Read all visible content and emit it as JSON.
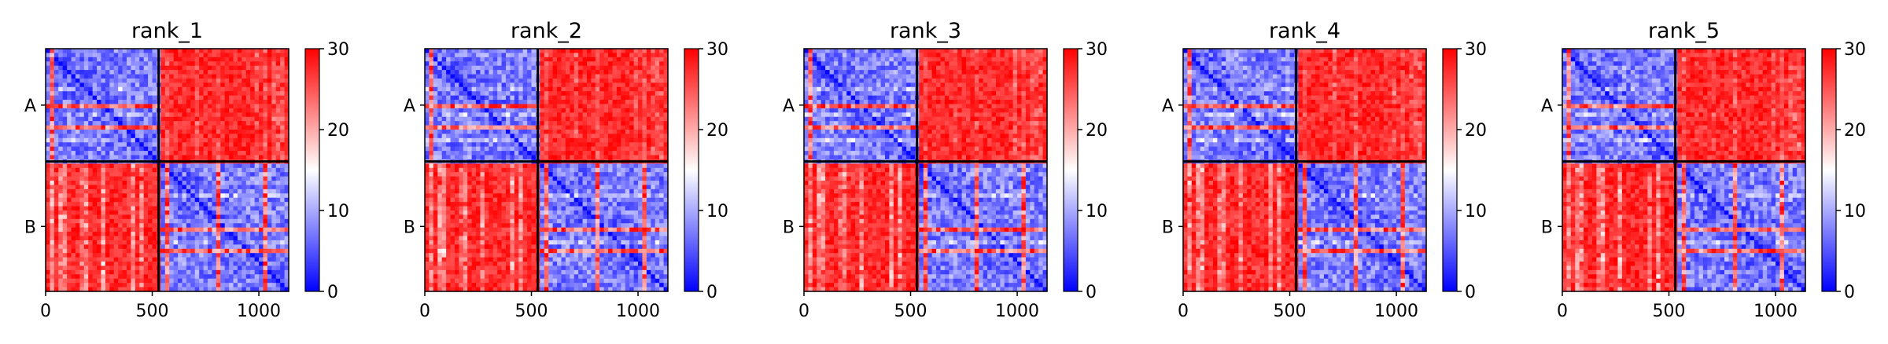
{
  "chart_data": {
    "type": "heatmap",
    "colormap": {
      "low": "#0000ff",
      "mid": "#ffffff",
      "high": "#ff0000"
    },
    "colorbar": {
      "range": [
        0,
        30
      ],
      "ticks": [
        "0",
        "10",
        "20",
        "30"
      ]
    },
    "x_axis": {
      "range": [
        0,
        1140
      ],
      "ticks": [
        0,
        500,
        1000
      ],
      "tick_labels": [
        "0",
        "500",
        "1000"
      ]
    },
    "y_axis": {
      "range": [
        0,
        1140
      ],
      "inverted": true,
      "tick_labels": [
        "A",
        "B"
      ],
      "tick_positions": [
        265,
        835
      ]
    },
    "chain_boundary": 530,
    "grid": false,
    "panels": [
      {
        "title": "rank_1"
      },
      {
        "title": "rank_2"
      },
      {
        "title": "rank_3"
      },
      {
        "title": "rank_4"
      },
      {
        "title": "rank_5"
      }
    ]
  }
}
